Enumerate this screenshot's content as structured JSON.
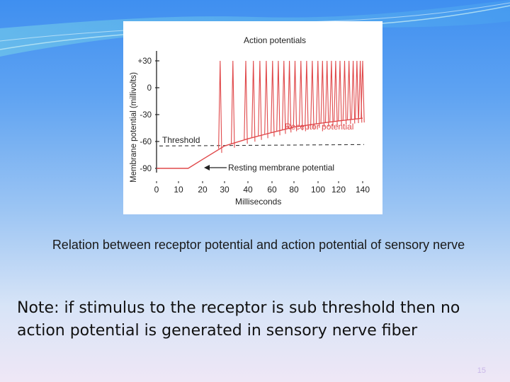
{
  "slide": {
    "caption": "Relation between receptor potential and action potential of sensory nerve",
    "note": "Note: if stimulus to the receptor is sub threshold then no action potential is generated in sensory nerve fiber",
    "slide_number": "15"
  },
  "colors": {
    "trace": "#e0484a",
    "axis": "#222222",
    "background_top": "#3f8ff0",
    "background_bottom": "#efe7f6"
  },
  "chart_data": {
    "type": "line",
    "title": "Action potentials",
    "xlabel": "Milliseconds",
    "ylabel": "Membrane potential (millivolts)",
    "x_ticks": [
      "0",
      "10",
      "20",
      "30",
      "40",
      "60",
      "80",
      "100",
      "120",
      "140"
    ],
    "y_ticks": [
      "+30",
      "0",
      "-30",
      "-60",
      "-90"
    ],
    "ylim": [
      -90,
      30
    ],
    "threshold_label": "Threshold",
    "threshold_value": -65,
    "annotations": {
      "receptor": "Receptor potential",
      "resting": "Resting membrane potential"
    },
    "receptor_potential": {
      "x": [
        0,
        14,
        20,
        30,
        40,
        60,
        80,
        100,
        120,
        140
      ],
      "y": [
        -90,
        -90,
        -80,
        -65,
        -57,
        -50,
        -44,
        -40,
        -37,
        -34
      ]
    },
    "spike_count": 26,
    "spike_start_ms": 28,
    "spike_end_ms": 140,
    "spike_peak_mv": 30,
    "grid": false
  }
}
